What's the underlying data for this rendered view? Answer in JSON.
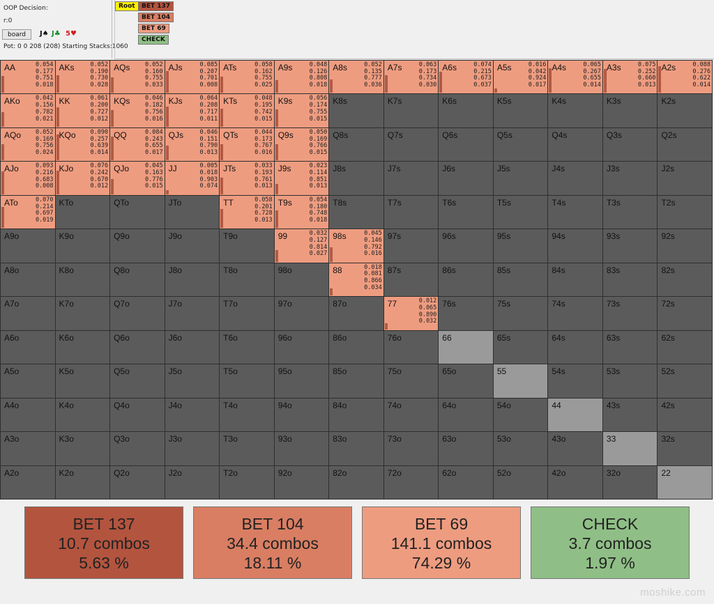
{
  "colors": {
    "bet137": "#b3543f",
    "bet104": "#d97e63",
    "bet69": "#ee9c80",
    "check": "#8fbf86",
    "fold": "#5b5b5b",
    "pair_highlight": "#9a9a9a",
    "root": "#fff100"
  },
  "left_panel": {
    "title": "OOP Decision:",
    "r_line": "r:0",
    "board_button": "board",
    "cards": [
      "J♠",
      "J♣",
      "5♥"
    ],
    "pot_line": "Pot: 0 0 208 (208) Starting Stacks:1060"
  },
  "tree": {
    "root": "Root",
    "nodes": [
      "BET 137",
      "BET 104",
      "BET 69",
      "CHECK"
    ]
  },
  "grid": {
    "ranks": [
      "A",
      "K",
      "Q",
      "J",
      "T",
      "9",
      "8",
      "7",
      "6",
      "5",
      "4",
      "3",
      "2"
    ],
    "cells": [
      [
        "AA",
        "0.054\n0.177\n0.751\n0.018"
      ],
      [
        "AKs",
        "0.052\n0.190\n0.730\n0.028"
      ],
      [
        "AQs",
        "0.052\n0.160\n0.755\n0.033"
      ],
      [
        "AJs",
        "0.085\n0.207\n0.701\n0.008"
      ],
      [
        "ATs",
        "0.058\n0.162\n0.755\n0.025"
      ],
      [
        "A9s",
        "0.048\n0.126\n0.808\n0.018"
      ],
      [
        "A8s",
        "0.052\n0.135\n0.777\n0.036"
      ],
      [
        "A7s",
        "0.063\n0.173\n0.734\n0.030"
      ],
      [
        "A6s",
        "0.074\n0.215\n0.673\n0.037"
      ],
      [
        "A5s",
        "0.016\n0.042\n0.924\n0.017"
      ],
      [
        "A4s",
        "0.065\n0.267\n0.655\n0.014"
      ],
      [
        "A3s",
        "0.075\n0.252\n0.660\n0.013"
      ],
      [
        "A2s",
        "0.088\n0.276\n0.622\n0.014"
      ],
      [
        "AKo",
        "0.042\n0.156\n0.782\n0.021"
      ],
      [
        "KK",
        "0.061\n0.200\n0.727\n0.012"
      ],
      [
        "KQs",
        "0.046\n0.182\n0.756\n0.016"
      ],
      [
        "KJs",
        "0.064\n0.208\n0.717\n0.011"
      ],
      [
        "KTs",
        "0.048\n0.195\n0.742\n0.015"
      ],
      [
        "K9s",
        "0.056\n0.174\n0.755\n0.015"
      ],
      [
        "K8s",
        ""
      ],
      [
        "K7s",
        ""
      ],
      [
        "K6s",
        ""
      ],
      [
        "K5s",
        ""
      ],
      [
        "K4s",
        ""
      ],
      [
        "K3s",
        ""
      ],
      [
        "K2s",
        ""
      ],
      [
        "AQo",
        "0.052\n0.169\n0.756\n0.024"
      ],
      [
        "KQo",
        "0.090\n0.257\n0.639\n0.014"
      ],
      [
        "QQ",
        "0.084\n0.243\n0.655\n0.017"
      ],
      [
        "QJs",
        "0.046\n0.151\n0.790\n0.013"
      ],
      [
        "QTs",
        "0.044\n0.173\n0.767\n0.016"
      ],
      [
        "Q9s",
        "0.050\n0.169\n0.766\n0.015"
      ],
      [
        "Q8s",
        ""
      ],
      [
        "Q7s",
        ""
      ],
      [
        "Q6s",
        ""
      ],
      [
        "Q5s",
        ""
      ],
      [
        "Q4s",
        ""
      ],
      [
        "Q3s",
        ""
      ],
      [
        "Q2s",
        ""
      ],
      [
        "AJo",
        "0.093\n0.216\n0.683\n0.008"
      ],
      [
        "KJo",
        "0.076\n0.242\n0.670\n0.012"
      ],
      [
        "QJo",
        "0.045\n0.163\n0.776\n0.015"
      ],
      [
        "JJ",
        "0.005\n0.018\n0.903\n0.074"
      ],
      [
        "JTs",
        "0.033\n0.193\n0.761\n0.013"
      ],
      [
        "J9s",
        "0.023\n0.114\n0.851\n0.013"
      ],
      [
        "J8s",
        ""
      ],
      [
        "J7s",
        ""
      ],
      [
        "J6s",
        ""
      ],
      [
        "J5s",
        ""
      ],
      [
        "J4s",
        ""
      ],
      [
        "J3s",
        ""
      ],
      [
        "J2s",
        ""
      ],
      [
        "ATo",
        "0.070\n0.214\n0.697\n0.019"
      ],
      [
        "KTo",
        ""
      ],
      [
        "QTo",
        ""
      ],
      [
        "JTo",
        ""
      ],
      [
        "TT",
        "0.058\n0.201\n0.728\n0.013"
      ],
      [
        "T9s",
        "0.054\n0.180\n0.748\n0.018"
      ],
      [
        "T8s",
        ""
      ],
      [
        "T7s",
        ""
      ],
      [
        "T6s",
        ""
      ],
      [
        "T5s",
        ""
      ],
      [
        "T4s",
        ""
      ],
      [
        "T3s",
        ""
      ],
      [
        "T2s",
        ""
      ],
      [
        "A9o",
        ""
      ],
      [
        "K9o",
        ""
      ],
      [
        "Q9o",
        ""
      ],
      [
        "J9o",
        ""
      ],
      [
        "T9o",
        ""
      ],
      [
        "99",
        "0.032\n0.127\n0.814\n0.027"
      ],
      [
        "98s",
        "0.045\n0.146\n0.792\n0.016"
      ],
      [
        "97s",
        ""
      ],
      [
        "96s",
        ""
      ],
      [
        "95s",
        ""
      ],
      [
        "94s",
        ""
      ],
      [
        "93s",
        ""
      ],
      [
        "92s",
        ""
      ],
      [
        "A8o",
        ""
      ],
      [
        "K8o",
        ""
      ],
      [
        "Q8o",
        ""
      ],
      [
        "J8o",
        ""
      ],
      [
        "T8o",
        ""
      ],
      [
        "98o",
        ""
      ],
      [
        "88",
        "0.018\n0.081\n0.866\n0.034"
      ],
      [
        "87s",
        ""
      ],
      [
        "86s",
        ""
      ],
      [
        "85s",
        ""
      ],
      [
        "84s",
        ""
      ],
      [
        "83s",
        ""
      ],
      [
        "82s",
        ""
      ],
      [
        "A7o",
        ""
      ],
      [
        "K7o",
        ""
      ],
      [
        "Q7o",
        ""
      ],
      [
        "J7o",
        ""
      ],
      [
        "T7o",
        ""
      ],
      [
        "97o",
        ""
      ],
      [
        "87o",
        ""
      ],
      [
        "77",
        "0.012\n0.065\n0.890\n0.032"
      ],
      [
        "76s",
        ""
      ],
      [
        "75s",
        ""
      ],
      [
        "74s",
        ""
      ],
      [
        "73s",
        ""
      ],
      [
        "72s",
        ""
      ],
      [
        "A6o",
        ""
      ],
      [
        "K6o",
        ""
      ],
      [
        "Q6o",
        ""
      ],
      [
        "J6o",
        ""
      ],
      [
        "T6o",
        ""
      ],
      [
        "96o",
        ""
      ],
      [
        "86o",
        ""
      ],
      [
        "76o",
        ""
      ],
      [
        "66",
        ""
      ],
      [
        "65s",
        ""
      ],
      [
        "64s",
        ""
      ],
      [
        "63s",
        ""
      ],
      [
        "62s",
        ""
      ],
      [
        "A5o",
        ""
      ],
      [
        "K5o",
        ""
      ],
      [
        "Q5o",
        ""
      ],
      [
        "J5o",
        ""
      ],
      [
        "T5o",
        ""
      ],
      [
        "95o",
        ""
      ],
      [
        "85o",
        ""
      ],
      [
        "75o",
        ""
      ],
      [
        "65o",
        ""
      ],
      [
        "55",
        ""
      ],
      [
        "54s",
        ""
      ],
      [
        "53s",
        ""
      ],
      [
        "52s",
        ""
      ],
      [
        "A4o",
        ""
      ],
      [
        "K4o",
        ""
      ],
      [
        "Q4o",
        ""
      ],
      [
        "J4o",
        ""
      ],
      [
        "T4o",
        ""
      ],
      [
        "94o",
        ""
      ],
      [
        "84o",
        ""
      ],
      [
        "74o",
        ""
      ],
      [
        "64o",
        ""
      ],
      [
        "54o",
        ""
      ],
      [
        "44",
        ""
      ],
      [
        "43s",
        ""
      ],
      [
        "42s",
        ""
      ],
      [
        "A3o",
        ""
      ],
      [
        "K3o",
        ""
      ],
      [
        "Q3o",
        ""
      ],
      [
        "J3o",
        ""
      ],
      [
        "T3o",
        ""
      ],
      [
        "93o",
        ""
      ],
      [
        "83o",
        ""
      ],
      [
        "73o",
        ""
      ],
      [
        "63o",
        ""
      ],
      [
        "53o",
        ""
      ],
      [
        "43o",
        ""
      ],
      [
        "33",
        ""
      ],
      [
        "32s",
        ""
      ],
      [
        "A2o",
        ""
      ],
      [
        "K2o",
        ""
      ],
      [
        "Q2o",
        ""
      ],
      [
        "J2o",
        ""
      ],
      [
        "T2o",
        ""
      ],
      [
        "92o",
        ""
      ],
      [
        "82o",
        ""
      ],
      [
        "72o",
        ""
      ],
      [
        "62o",
        ""
      ],
      [
        "52o",
        ""
      ],
      [
        "42o",
        ""
      ],
      [
        "32o",
        ""
      ],
      [
        "22",
        ""
      ]
    ]
  },
  "summary": [
    {
      "action": "BET 137",
      "combos": "10.7 combos",
      "percent": "5.63 %",
      "color": "#b3543f"
    },
    {
      "action": "BET 104",
      "combos": "34.4 combos",
      "percent": "18.11 %",
      "color": "#d97e63"
    },
    {
      "action": "BET 69",
      "combos": "141.1 combos",
      "percent": "74.29 %",
      "color": "#ee9c80"
    },
    {
      "action": "CHECK",
      "combos": "3.7 combos",
      "percent": "1.97 %",
      "color": "#8fbf86"
    }
  ],
  "watermark": "moshike.com"
}
